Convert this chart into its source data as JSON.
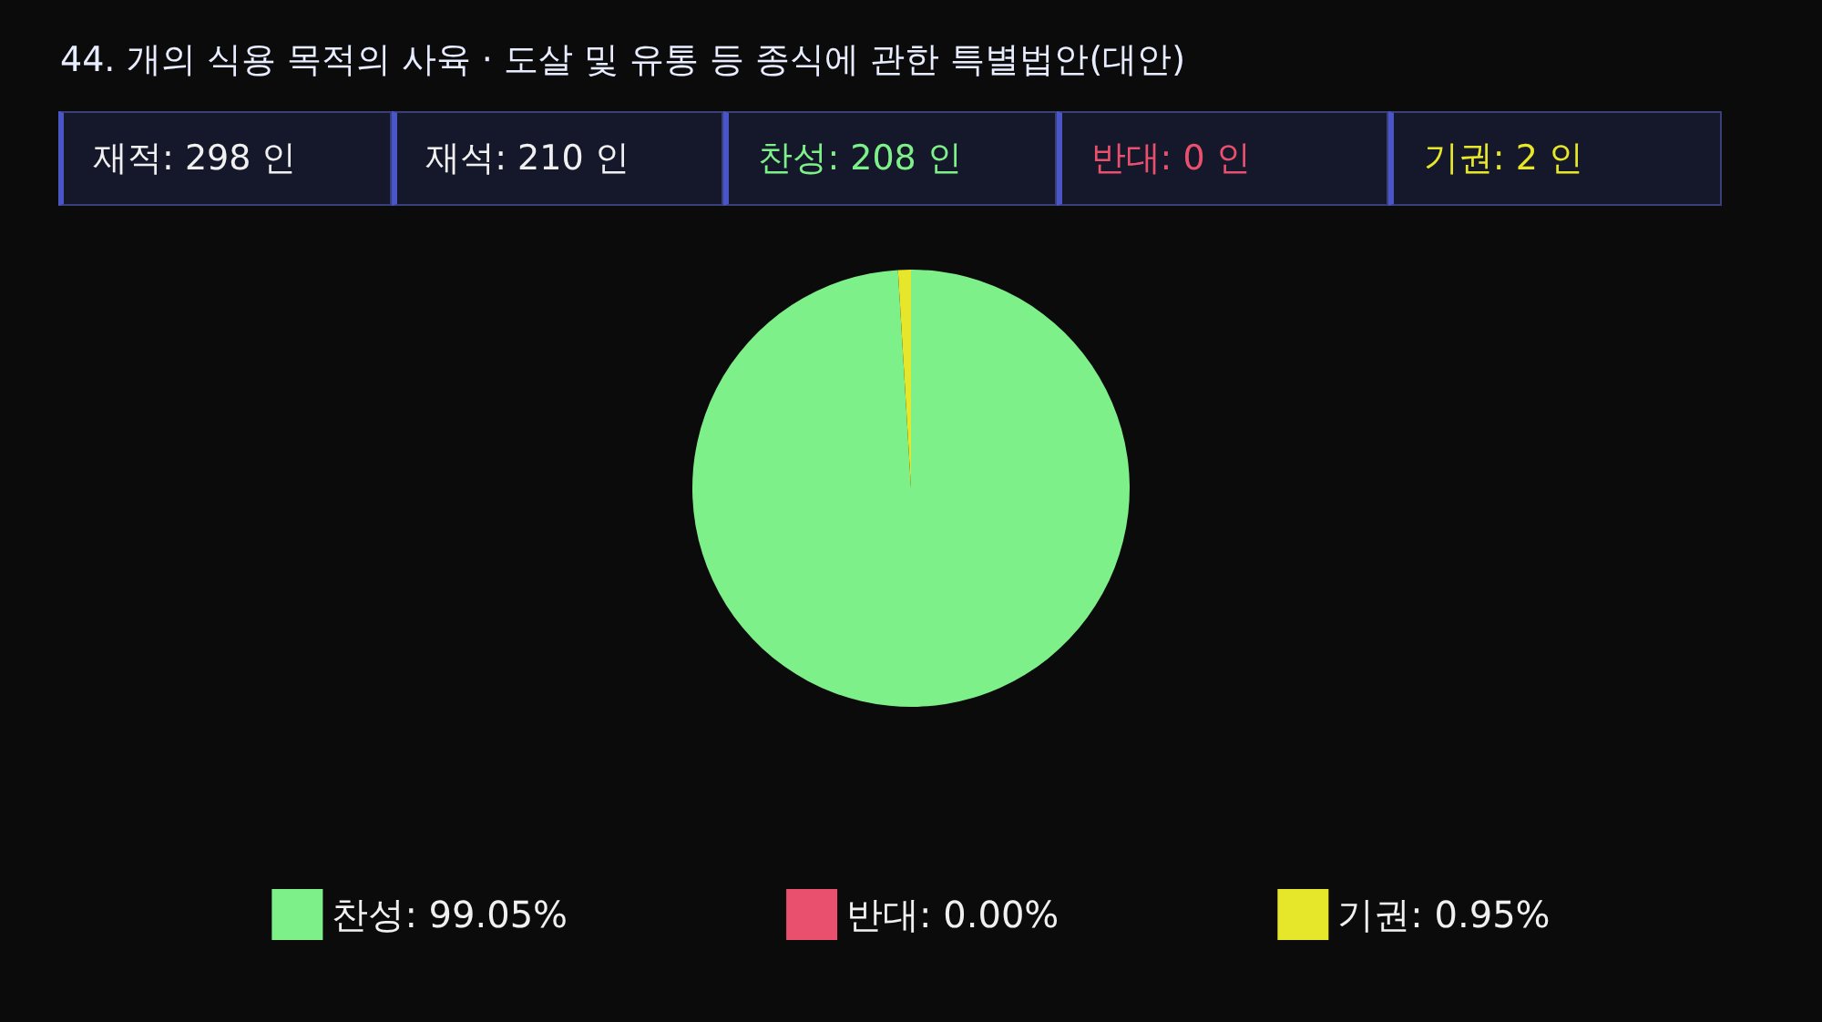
{
  "chart_data": {
    "type": "pie",
    "title": "44. 개의 식용 목적의 사육 · 도살 및 유통 등 종식에 관한 특별법안(대안)",
    "annotations": [
      "재적: 298 인",
      "재석: 210 인",
      "찬성: 208 인",
      "반대:  0 인",
      "기권:  2 인"
    ],
    "categories": [
      "찬성",
      "반대",
      "기권"
    ],
    "values": [
      99.05,
      0.0,
      0.95
    ],
    "value_labels": [
      "99.05%",
      "0.00%",
      "0.95%"
    ],
    "colors": [
      "#7ef08a",
      "#e8506e",
      "#e6e62a"
    ],
    "legend": "bottom"
  }
}
